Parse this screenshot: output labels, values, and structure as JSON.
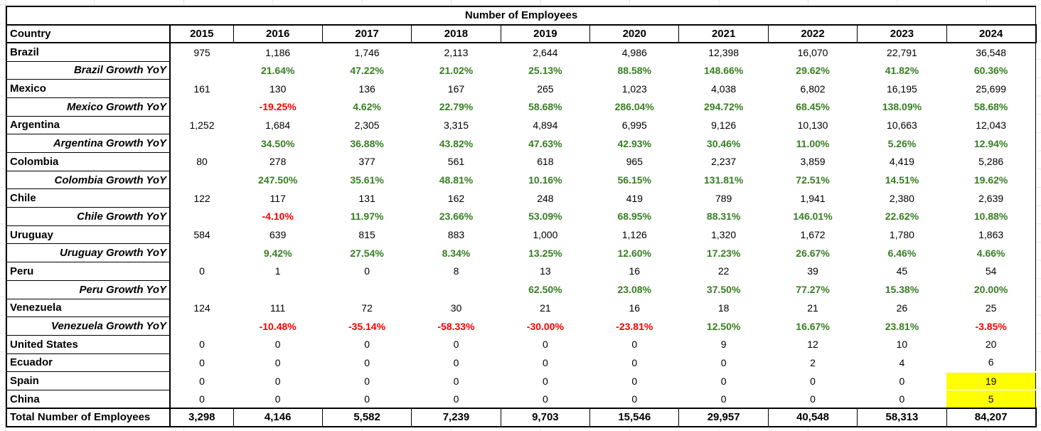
{
  "colors": {
    "positive": "#377e22",
    "negative": "#fb0000",
    "highlight": "#ffff00",
    "border": "#000000"
  },
  "chart_data": {
    "type": "table",
    "title": "Number of Employees",
    "columns": [
      "Country",
      "2015",
      "2016",
      "2017",
      "2018",
      "2019",
      "2020",
      "2021",
      "2022",
      "2023",
      "2024"
    ],
    "rows": [
      {
        "label": "Brazil",
        "style": "country",
        "values": [
          "975",
          "1,186",
          "1,746",
          "2,113",
          "2,644",
          "4,986",
          "12,398",
          "16,070",
          "22,791",
          "36,548"
        ]
      },
      {
        "label": "Brazil Growth YoY",
        "style": "growth",
        "values": [
          "",
          "21.64%",
          "47.22%",
          "21.02%",
          "25.13%",
          "88.58%",
          "148.66%",
          "29.62%",
          "41.82%",
          "60.36%"
        ]
      },
      {
        "label": "Mexico",
        "style": "country",
        "values": [
          "161",
          "130",
          "136",
          "167",
          "265",
          "1,023",
          "4,038",
          "6,802",
          "16,195",
          "25,699"
        ]
      },
      {
        "label": "Mexico Growth YoY",
        "style": "growth",
        "values": [
          "",
          "-19.25%",
          "4.62%",
          "22.79%",
          "58.68%",
          "286.04%",
          "294.72%",
          "68.45%",
          "138.09%",
          "58.68%"
        ]
      },
      {
        "label": "Argentina",
        "style": "country",
        "values": [
          "1,252",
          "1,684",
          "2,305",
          "3,315",
          "4,894",
          "6,995",
          "9,126",
          "10,130",
          "10,663",
          "12,043"
        ]
      },
      {
        "label": "Argentina Growth YoY",
        "style": "growth",
        "values": [
          "",
          "34.50%",
          "36.88%",
          "43.82%",
          "47.63%",
          "42.93%",
          "30.46%",
          "11.00%",
          "5.26%",
          "12.94%"
        ]
      },
      {
        "label": "Colombia",
        "style": "country",
        "values": [
          "80",
          "278",
          "377",
          "561",
          "618",
          "965",
          "2,237",
          "3,859",
          "4,419",
          "5,286"
        ]
      },
      {
        "label": "Colombia Growth YoY",
        "style": "growth",
        "values": [
          "",
          "247.50%",
          "35.61%",
          "48.81%",
          "10.16%",
          "56.15%",
          "131.81%",
          "72.51%",
          "14.51%",
          "19.62%"
        ]
      },
      {
        "label": "Chile",
        "style": "country",
        "values": [
          "122",
          "117",
          "131",
          "162",
          "248",
          "419",
          "789",
          "1,941",
          "2,380",
          "2,639"
        ]
      },
      {
        "label": "Chile Growth YoY",
        "style": "growth",
        "values": [
          "",
          "-4.10%",
          "11.97%",
          "23.66%",
          "53.09%",
          "68.95%",
          "88.31%",
          "146.01%",
          "22.62%",
          "10.88%"
        ]
      },
      {
        "label": "Uruguay",
        "style": "country",
        "values": [
          "584",
          "639",
          "815",
          "883",
          "1,000",
          "1,126",
          "1,320",
          "1,672",
          "1,780",
          "1,863"
        ]
      },
      {
        "label": "Uruguay Growth YoY",
        "style": "growth",
        "values": [
          "",
          "9.42%",
          "27.54%",
          "8.34%",
          "13.25%",
          "12.60%",
          "17.23%",
          "26.67%",
          "6.46%",
          "4.66%"
        ]
      },
      {
        "label": "Peru",
        "style": "country",
        "values": [
          "0",
          "1",
          "0",
          "8",
          "13",
          "16",
          "22",
          "39",
          "45",
          "54"
        ]
      },
      {
        "label": "Peru Growth YoY",
        "style": "growth",
        "values": [
          "",
          "",
          "",
          "",
          "62.50%",
          "23.08%",
          "37.50%",
          "77.27%",
          "15.38%",
          "20.00%"
        ]
      },
      {
        "label": "Venezuela",
        "style": "country",
        "values": [
          "124",
          "111",
          "72",
          "30",
          "21",
          "16",
          "18",
          "21",
          "26",
          "25"
        ]
      },
      {
        "label": "Venezuela Growth YoY",
        "style": "growth",
        "values": [
          "",
          "-10.48%",
          "-35.14%",
          "-58.33%",
          "-30.00%",
          "-23.81%",
          "12.50%",
          "16.67%",
          "23.81%",
          "-3.85%"
        ]
      },
      {
        "label": "United States",
        "style": "country",
        "values": [
          "0",
          "0",
          "0",
          "0",
          "0",
          "0",
          "9",
          "12",
          "10",
          "20"
        ]
      },
      {
        "label": "Ecuador",
        "style": "country",
        "values": [
          "0",
          "0",
          "0",
          "0",
          "0",
          "0",
          "0",
          "2",
          "4",
          "6"
        ]
      },
      {
        "label": "Spain",
        "style": "country",
        "values": [
          "0",
          "0",
          "0",
          "0",
          "0",
          "0",
          "0",
          "0",
          "0",
          "19"
        ],
        "highlights": [
          9
        ]
      },
      {
        "label": "China",
        "style": "country",
        "values": [
          "0",
          "0",
          "0",
          "0",
          "0",
          "0",
          "0",
          "0",
          "0",
          "5"
        ],
        "highlights": [
          9
        ]
      },
      {
        "label": "Total Number of Employees",
        "style": "total",
        "values": [
          "3,298",
          "4,146",
          "5,582",
          "7,239",
          "9,703",
          "15,546",
          "29,957",
          "40,548",
          "58,313",
          "84,207"
        ]
      }
    ]
  }
}
